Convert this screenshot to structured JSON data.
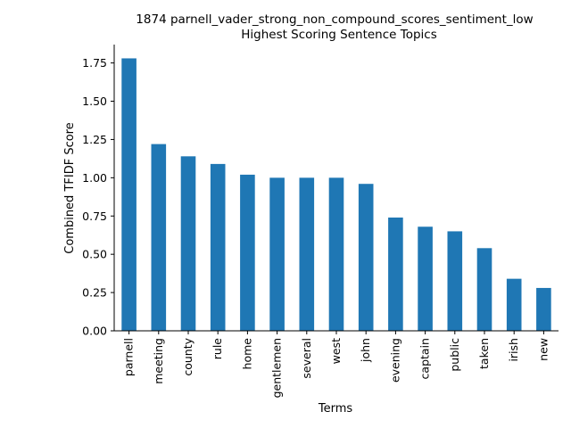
{
  "chart_data": {
    "type": "bar",
    "title": "1874 parnell_vader_strong_non_compound_scores_sentiment_low",
    "subtitle": "Highest Scoring Sentence Topics",
    "xlabel": "Terms",
    "ylabel": "Combined TFIDF Score",
    "categories": [
      "parnell",
      "meeting",
      "county",
      "rule",
      "home",
      "gentlemen",
      "several",
      "west",
      "john",
      "evening",
      "captain",
      "public",
      "taken",
      "irish",
      "new"
    ],
    "values": [
      1.78,
      1.22,
      1.14,
      1.09,
      1.02,
      1.0,
      1.0,
      1.0,
      0.96,
      0.74,
      0.68,
      0.65,
      0.54,
      0.34,
      0.28
    ],
    "yticks": [
      "0.00",
      "0.25",
      "0.50",
      "0.75",
      "1.00",
      "1.25",
      "1.50",
      "1.75"
    ],
    "ylim": [
      0,
      1.87
    ],
    "bar_color": "#1f77b4",
    "grid": false,
    "legend": "none"
  }
}
